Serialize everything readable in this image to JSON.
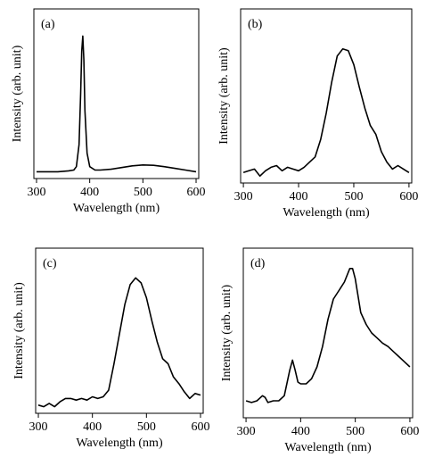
{
  "chart_data": [
    {
      "type": "line",
      "label": "(a)",
      "xlabel": "Wavelength (nm)",
      "ylabel": "Intensity (arb. unit)",
      "color": "#000000",
      "x": [
        300,
        320,
        340,
        360,
        370,
        375,
        380,
        383,
        385,
        387,
        389,
        391,
        395,
        400,
        410,
        420,
        440,
        460,
        480,
        500,
        520,
        540,
        560,
        580,
        600
      ],
      "values": [
        0.04,
        0.04,
        0.04,
        0.045,
        0.05,
        0.07,
        0.2,
        0.5,
        0.75,
        0.84,
        0.7,
        0.4,
        0.15,
        0.07,
        0.05,
        0.05,
        0.055,
        0.065,
        0.075,
        0.08,
        0.078,
        0.07,
        0.06,
        0.05,
        0.04
      ],
      "xlim": [
        295,
        605
      ],
      "ylim": [
        0,
        1
      ],
      "xticks": [
        300,
        400,
        500,
        600
      ]
    },
    {
      "type": "line",
      "label": "(b)",
      "xlabel": "Wavelength (nm)",
      "ylabel": "Intensity (arb. unit)",
      "color": "#000000",
      "x": [
        300,
        310,
        320,
        330,
        340,
        350,
        360,
        370,
        380,
        390,
        400,
        410,
        420,
        430,
        440,
        450,
        460,
        470,
        480,
        490,
        500,
        510,
        520,
        530,
        540,
        550,
        560,
        570,
        580,
        590,
        600
      ],
      "values": [
        0.06,
        0.07,
        0.08,
        0.04,
        0.07,
        0.09,
        0.1,
        0.07,
        0.09,
        0.08,
        0.07,
        0.09,
        0.12,
        0.15,
        0.25,
        0.4,
        0.58,
        0.73,
        0.77,
        0.76,
        0.68,
        0.55,
        0.43,
        0.33,
        0.28,
        0.18,
        0.12,
        0.08,
        0.1,
        0.08,
        0.06
      ],
      "xlim": [
        295,
        605
      ],
      "ylim": [
        0,
        1
      ],
      "xticks": [
        300,
        400,
        500,
        600
      ]
    },
    {
      "type": "line",
      "label": "(c)",
      "xlabel": "Wavelength (nm)",
      "ylabel": "Intensity (arb. unit)",
      "color": "#000000",
      "x": [
        300,
        310,
        320,
        330,
        340,
        350,
        360,
        370,
        380,
        390,
        400,
        410,
        420,
        430,
        440,
        450,
        460,
        470,
        480,
        490,
        500,
        510,
        520,
        530,
        540,
        550,
        560,
        570,
        580,
        590,
        600
      ],
      "values": [
        0.05,
        0.04,
        0.06,
        0.04,
        0.07,
        0.09,
        0.09,
        0.08,
        0.09,
        0.08,
        0.1,
        0.09,
        0.1,
        0.14,
        0.3,
        0.48,
        0.66,
        0.78,
        0.82,
        0.79,
        0.7,
        0.56,
        0.43,
        0.33,
        0.3,
        0.22,
        0.18,
        0.13,
        0.09,
        0.12,
        0.11
      ],
      "xlim": [
        295,
        605
      ],
      "ylim": [
        0,
        1
      ],
      "xticks": [
        300,
        400,
        500,
        600
      ]
    },
    {
      "type": "line",
      "label": "(d)",
      "xlabel": "Wavelength (nm)",
      "ylabel": "Intensity (arb. unit)",
      "color": "#000000",
      "x": [
        300,
        310,
        320,
        330,
        335,
        340,
        350,
        360,
        370,
        380,
        385,
        390,
        395,
        400,
        410,
        420,
        430,
        440,
        450,
        460,
        470,
        480,
        490,
        495,
        500,
        510,
        520,
        530,
        540,
        550,
        560,
        570,
        580,
        590,
        600
      ],
      "values": [
        0.1,
        0.09,
        0.1,
        0.13,
        0.12,
        0.09,
        0.1,
        0.1,
        0.13,
        0.28,
        0.34,
        0.28,
        0.21,
        0.2,
        0.2,
        0.23,
        0.3,
        0.42,
        0.58,
        0.7,
        0.75,
        0.8,
        0.88,
        0.88,
        0.82,
        0.62,
        0.55,
        0.5,
        0.47,
        0.44,
        0.42,
        0.39,
        0.36,
        0.33,
        0.3
      ],
      "xlim": [
        295,
        605
      ],
      "ylim": [
        0,
        1
      ],
      "xticks": [
        300,
        400,
        500,
        600
      ]
    }
  ]
}
